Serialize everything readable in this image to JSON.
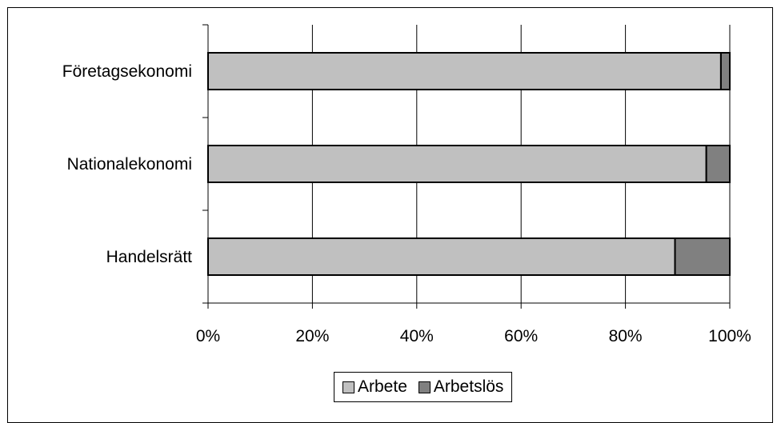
{
  "chart_data": {
    "type": "bar",
    "orientation": "horizontal",
    "stacked": "percent",
    "categories": [
      "Företagsekonomi",
      "Nationalekonomi",
      "Handelsrätt"
    ],
    "series": [
      {
        "name": "Arbete",
        "values": [
          98.3,
          95.5,
          89.5
        ],
        "color": "#c0c0c0"
      },
      {
        "name": "Arbetslös",
        "values": [
          1.7,
          4.5,
          10.5
        ],
        "color": "#808080"
      }
    ],
    "x_ticks": [
      "0%",
      "20%",
      "40%",
      "60%",
      "80%",
      "100%"
    ],
    "xlim": [
      0,
      100
    ],
    "grid": "vertical",
    "legend": "bottom"
  }
}
